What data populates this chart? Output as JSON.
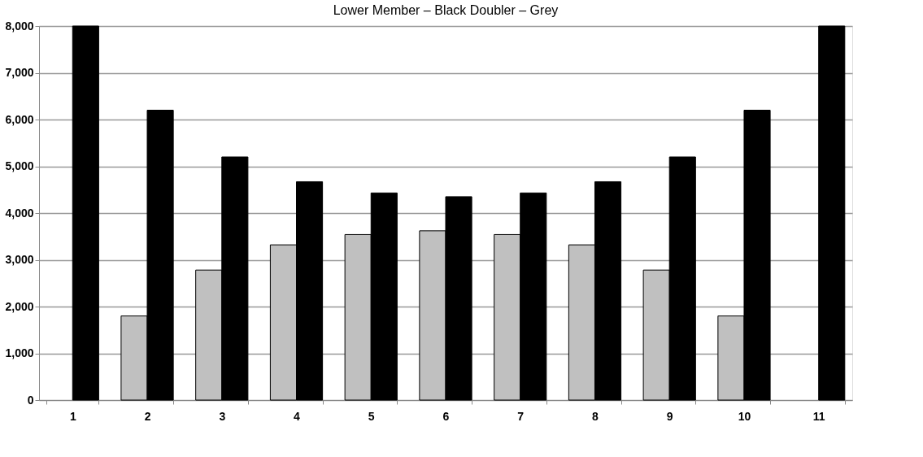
{
  "chart_data": {
    "type": "bar",
    "title": "Lower Member  –  Black       Doubler  –  Grey",
    "categories": [
      "1",
      "2",
      "3",
      "4",
      "5",
      "6",
      "7",
      "8",
      "9",
      "10",
      "11"
    ],
    "series": [
      {
        "color": "#c0c0c0",
        "values": [
          null,
          1800,
          2780,
          3320,
          3540,
          3620,
          3540,
          3320,
          2780,
          1800,
          null
        ]
      },
      {
        "color": "#000000",
        "values": [
          8000,
          6200,
          5200,
          4670,
          4430,
          4350,
          4430,
          4670,
          5200,
          6200,
          8000
        ]
      }
    ],
    "ylim": [
      0,
      8000
    ],
    "yticks": [
      {
        "value": 0,
        "label": "0"
      },
      {
        "value": 1000,
        "label": "1,000"
      },
      {
        "value": 2000,
        "label": "2,000"
      },
      {
        "value": 3000,
        "label": "3,000"
      },
      {
        "value": 4000,
        "label": "4,000"
      },
      {
        "value": 5000,
        "label": "5,000"
      },
      {
        "value": 6000,
        "label": "6,000"
      },
      {
        "value": 7000,
        "label": "7,000"
      },
      {
        "value": 8000,
        "label": "8,000"
      }
    ],
    "grid": "y",
    "legend": false
  }
}
